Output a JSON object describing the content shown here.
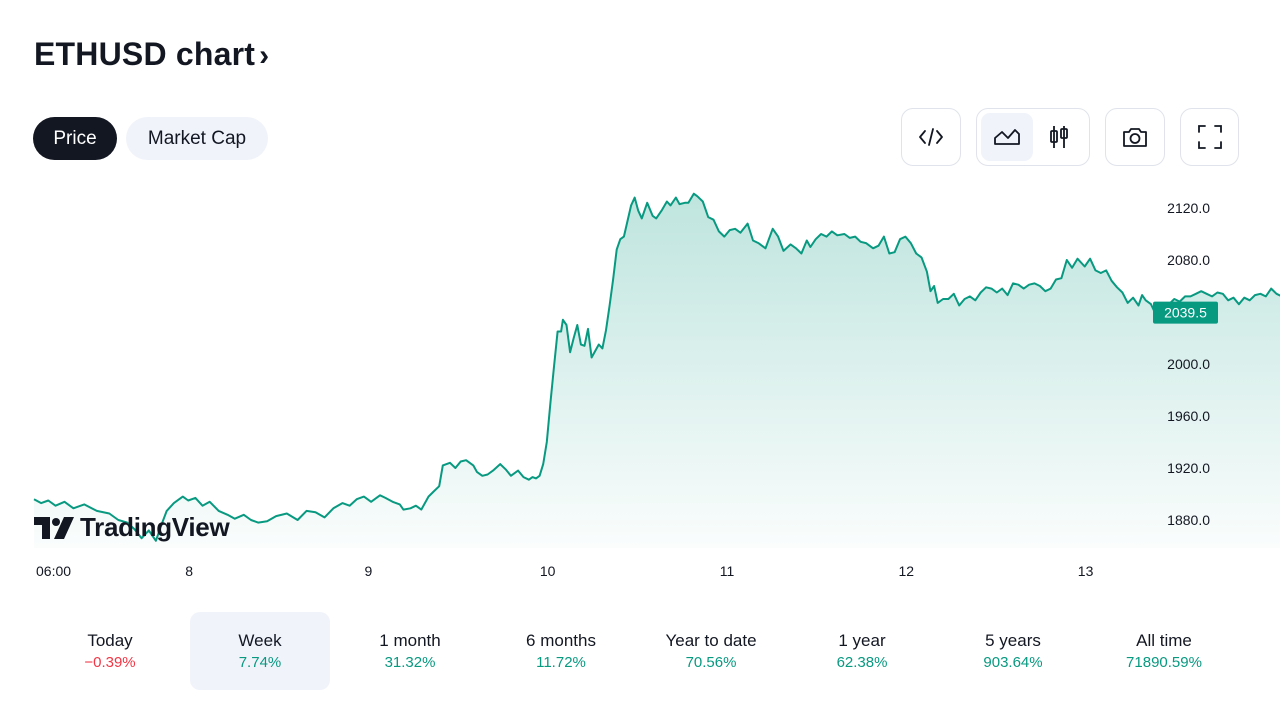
{
  "header": {
    "title": "ETHUSD chart",
    "title_chevron": "›"
  },
  "tabs": [
    {
      "label": "Price",
      "active": true
    },
    {
      "label": "Market Cap",
      "active": false
    }
  ],
  "toolbar": {
    "embed_icon": "code-embed-icon",
    "area_icon": "area-chart-icon",
    "candle_icon": "candlestick-icon",
    "snapshot_icon": "camera-icon",
    "fullscreen_icon": "fullscreen-icon",
    "selected_style": "area"
  },
  "logo": {
    "text": "TradingView"
  },
  "colors": {
    "accent": "#089981",
    "negative": "#f23645",
    "dark": "#131722",
    "soft_bg": "#f0f3fa"
  },
  "chart_data": {
    "type": "area",
    "series_color": "#089981",
    "y_ticks": [
      "2120.0",
      "2080.0",
      "2040.0",
      "2000.0",
      "1960.0",
      "1920.0",
      "1880.0"
    ],
    "ylim": [
      1860,
      2134
    ],
    "x_ticks": [
      "06:00",
      "8",
      "9",
      "10",
      "11",
      "12",
      "13"
    ],
    "last_price": "2039.5",
    "grid": false,
    "points": [
      [
        0,
        1896
      ],
      [
        0.04,
        1893
      ],
      [
        0.08,
        1895
      ],
      [
        0.12,
        1891
      ],
      [
        0.17,
        1894
      ],
      [
        0.22,
        1889
      ],
      [
        0.28,
        1892
      ],
      [
        0.35,
        1887
      ],
      [
        0.42,
        1885
      ],
      [
        0.47,
        1880
      ],
      [
        0.52,
        1878
      ],
      [
        0.56,
        1873
      ],
      [
        0.6,
        1866
      ],
      [
        0.64,
        1872
      ],
      [
        0.68,
        1864
      ],
      [
        0.71,
        1876
      ],
      [
        0.74,
        1887
      ],
      [
        0.78,
        1893
      ],
      [
        0.83,
        1898
      ],
      [
        0.86,
        1895
      ],
      [
        0.9,
        1897
      ],
      [
        0.94,
        1891
      ],
      [
        0.98,
        1894
      ],
      [
        1.03,
        1887
      ],
      [
        1.08,
        1884
      ],
      [
        1.12,
        1881
      ],
      [
        1.17,
        1884
      ],
      [
        1.21,
        1880
      ],
      [
        1.25,
        1878
      ],
      [
        1.3,
        1879
      ],
      [
        1.35,
        1883
      ],
      [
        1.41,
        1885
      ],
      [
        1.47,
        1880
      ],
      [
        1.52,
        1887
      ],
      [
        1.57,
        1886
      ],
      [
        1.62,
        1882
      ],
      [
        1.67,
        1889
      ],
      [
        1.72,
        1893
      ],
      [
        1.76,
        1891
      ],
      [
        1.8,
        1896
      ],
      [
        1.84,
        1898
      ],
      [
        1.88,
        1894
      ],
      [
        1.93,
        1899
      ],
      [
        1.96,
        1897
      ],
      [
        2.0,
        1894
      ],
      [
        2.04,
        1892
      ],
      [
        2.06,
        1888
      ],
      [
        2.1,
        1889
      ],
      [
        2.13,
        1891
      ],
      [
        2.16,
        1888
      ],
      [
        2.2,
        1898
      ],
      [
        2.23,
        1902
      ],
      [
        2.26,
        1906
      ],
      [
        2.28,
        1922
      ],
      [
        2.32,
        1924
      ],
      [
        2.35,
        1920
      ],
      [
        2.38,
        1925
      ],
      [
        2.41,
        1926
      ],
      [
        2.45,
        1922
      ],
      [
        2.47,
        1917
      ],
      [
        2.5,
        1914
      ],
      [
        2.53,
        1915
      ],
      [
        2.56,
        1918
      ],
      [
        2.6,
        1923
      ],
      [
        2.63,
        1919
      ],
      [
        2.66,
        1914
      ],
      [
        2.7,
        1918
      ],
      [
        2.73,
        1913
      ],
      [
        2.76,
        1911
      ],
      [
        2.78,
        1913
      ],
      [
        2.8,
        1912
      ],
      [
        2.82,
        1914
      ],
      [
        2.84,
        1923
      ],
      [
        2.86,
        1940
      ],
      [
        2.88,
        1970
      ],
      [
        2.9,
        1998
      ],
      [
        2.92,
        2025
      ],
      [
        2.94,
        2025
      ],
      [
        2.95,
        2034
      ],
      [
        2.97,
        2030
      ],
      [
        2.99,
        2009
      ],
      [
        3.01,
        2020
      ],
      [
        3.03,
        2030
      ],
      [
        3.05,
        2015
      ],
      [
        3.07,
        2014
      ],
      [
        3.09,
        2027
      ],
      [
        3.11,
        2005
      ],
      [
        3.13,
        2010
      ],
      [
        3.15,
        2015
      ],
      [
        3.17,
        2012
      ],
      [
        3.19,
        2026
      ],
      [
        3.21,
        2045
      ],
      [
        3.23,
        2065
      ],
      [
        3.25,
        2088
      ],
      [
        3.27,
        2096
      ],
      [
        3.29,
        2098
      ],
      [
        3.31,
        2110
      ],
      [
        3.33,
        2122
      ],
      [
        3.35,
        2128
      ],
      [
        3.37,
        2118
      ],
      [
        3.39,
        2112
      ],
      [
        3.42,
        2124
      ],
      [
        3.45,
        2114
      ],
      [
        3.47,
        2112
      ],
      [
        3.5,
        2118
      ],
      [
        3.53,
        2125
      ],
      [
        3.55,
        2122
      ],
      [
        3.58,
        2128
      ],
      [
        3.6,
        2123
      ],
      [
        3.63,
        2124
      ],
      [
        3.65,
        2124
      ],
      [
        3.68,
        2131
      ],
      [
        3.7,
        2129
      ],
      [
        3.73,
        2125
      ],
      [
        3.76,
        2113
      ],
      [
        3.79,
        2111
      ],
      [
        3.82,
        2102
      ],
      [
        3.85,
        2098
      ],
      [
        3.88,
        2103
      ],
      [
        3.91,
        2104
      ],
      [
        3.94,
        2101
      ],
      [
        3.98,
        2108
      ],
      [
        4.01,
        2095
      ],
      [
        4.04,
        2093
      ],
      [
        4.08,
        2089
      ],
      [
        4.12,
        2104
      ],
      [
        4.15,
        2098
      ],
      [
        4.18,
        2087
      ],
      [
        4.22,
        2092
      ],
      [
        4.25,
        2089
      ],
      [
        4.28,
        2085
      ],
      [
        4.31,
        2095
      ],
      [
        4.33,
        2090
      ],
      [
        4.36,
        2096
      ],
      [
        4.39,
        2100
      ],
      [
        4.42,
        2098
      ],
      [
        4.45,
        2102
      ],
      [
        4.48,
        2099
      ],
      [
        4.52,
        2100
      ],
      [
        4.55,
        2097
      ],
      [
        4.58,
        2098
      ],
      [
        4.61,
        2094
      ],
      [
        4.64,
        2093
      ],
      [
        4.68,
        2089
      ],
      [
        4.71,
        2091
      ],
      [
        4.74,
        2098
      ],
      [
        4.77,
        2085
      ],
      [
        4.8,
        2086
      ],
      [
        4.83,
        2096
      ],
      [
        4.86,
        2098
      ],
      [
        4.89,
        2093
      ],
      [
        4.92,
        2085
      ],
      [
        4.95,
        2082
      ],
      [
        4.98,
        2071
      ],
      [
        5.0,
        2056
      ],
      [
        5.02,
        2060
      ],
      [
        5.04,
        2047
      ],
      [
        5.07,
        2050
      ],
      [
        5.1,
        2050
      ],
      [
        5.13,
        2054
      ],
      [
        5.16,
        2045
      ],
      [
        5.19,
        2050
      ],
      [
        5.22,
        2052
      ],
      [
        5.25,
        2049
      ],
      [
        5.28,
        2055
      ],
      [
        5.31,
        2059
      ],
      [
        5.34,
        2058
      ],
      [
        5.37,
        2055
      ],
      [
        5.4,
        2058
      ],
      [
        5.43,
        2053
      ],
      [
        5.46,
        2062
      ],
      [
        5.49,
        2061
      ],
      [
        5.52,
        2058
      ],
      [
        5.55,
        2061
      ],
      [
        5.58,
        2062
      ],
      [
        5.61,
        2060
      ],
      [
        5.64,
        2056
      ],
      [
        5.67,
        2058
      ],
      [
        5.7,
        2065
      ],
      [
        5.73,
        2066
      ],
      [
        5.76,
        2080
      ],
      [
        5.79,
        2074
      ],
      [
        5.82,
        2081
      ],
      [
        5.86,
        2075
      ],
      [
        5.89,
        2081
      ],
      [
        5.92,
        2072
      ],
      [
        5.95,
        2070
      ],
      [
        5.98,
        2072
      ],
      [
        6.01,
        2064
      ],
      [
        6.04,
        2059
      ],
      [
        6.07,
        2055
      ],
      [
        6.1,
        2047
      ],
      [
        6.13,
        2051
      ],
      [
        6.16,
        2045
      ],
      [
        6.18,
        2053
      ],
      [
        6.2,
        2049
      ],
      [
        6.23,
        2046
      ],
      [
        6.25,
        2040
      ],
      [
        6.27,
        2036
      ],
      [
        6.3,
        2042
      ],
      [
        6.33,
        2046
      ],
      [
        6.36,
        2050
      ],
      [
        6.39,
        2048
      ],
      [
        6.42,
        2052
      ],
      [
        6.45,
        2052
      ],
      [
        6.48,
        2054
      ],
      [
        6.51,
        2056
      ],
      [
        6.54,
        2054
      ],
      [
        6.57,
        2052
      ],
      [
        6.6,
        2055
      ],
      [
        6.63,
        2054
      ],
      [
        6.66,
        2049
      ],
      [
        6.69,
        2051
      ],
      [
        6.72,
        2046
      ],
      [
        6.75,
        2051
      ],
      [
        6.78,
        2049
      ],
      [
        6.81,
        2053
      ],
      [
        6.84,
        2054
      ],
      [
        6.87,
        2052
      ],
      [
        6.9,
        2058
      ],
      [
        6.93,
        2054
      ],
      [
        6.96,
        2052
      ],
      [
        6.99,
        2055
      ],
      [
        7.02,
        2053
      ],
      [
        7.05,
        2048
      ],
      [
        7.08,
        2061
      ],
      [
        7.11,
        2067
      ],
      [
        7.14,
        2063
      ],
      [
        7.17,
        2058
      ],
      [
        7.2,
        2051
      ],
      [
        7.23,
        2048
      ],
      [
        7.26,
        2044
      ],
      [
        7.28,
        2040
      ],
      [
        7.31,
        2043
      ],
      [
        7.34,
        2039.5
      ]
    ]
  },
  "periods": [
    {
      "label": "Today",
      "value": "−0.39%",
      "trend": "neg",
      "active": false
    },
    {
      "label": "Week",
      "value": "7.74%",
      "trend": "pos",
      "active": true
    },
    {
      "label": "1 month",
      "value": "31.32%",
      "trend": "pos",
      "active": false
    },
    {
      "label": "6 months",
      "value": "11.72%",
      "trend": "pos",
      "active": false
    },
    {
      "label": "Year to date",
      "value": "70.56%",
      "trend": "pos",
      "active": false
    },
    {
      "label": "1 year",
      "value": "62.38%",
      "trend": "pos",
      "active": false
    },
    {
      "label": "5 years",
      "value": "903.64%",
      "trend": "pos",
      "active": false
    },
    {
      "label": "All time",
      "value": "71890.59%",
      "trend": "pos",
      "active": false
    }
  ]
}
